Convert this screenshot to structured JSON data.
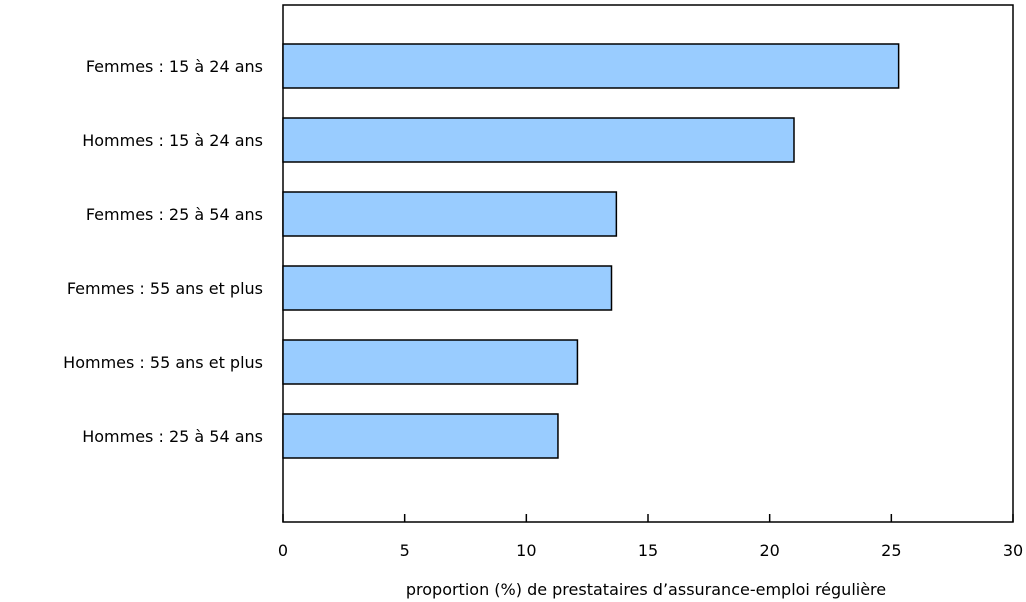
{
  "chart_data": {
    "type": "bar",
    "orientation": "horizontal",
    "title": "",
    "xlabel": "proportion (%) de prestataires d’assurance-emploi régulière",
    "ylabel": "",
    "xlim": [
      0,
      30
    ],
    "xticks": [
      0,
      5,
      10,
      15,
      20,
      25,
      30
    ],
    "grid": false,
    "legend": "none",
    "categories": [
      "Femmes : 15 à 24 ans",
      "Hommes : 15 à 24 ans",
      "Femmes : 25 à 54 ans",
      "Femmes : 55 ans et plus",
      "Hommes : 55 ans et plus",
      "Hommes : 25 à 54 ans"
    ],
    "values": [
      25.3,
      21.0,
      13.7,
      13.5,
      12.1,
      11.3
    ],
    "colors": {
      "bar_fill": "#99ccff",
      "bar_stroke": "#000000",
      "axis": "#000000"
    }
  }
}
